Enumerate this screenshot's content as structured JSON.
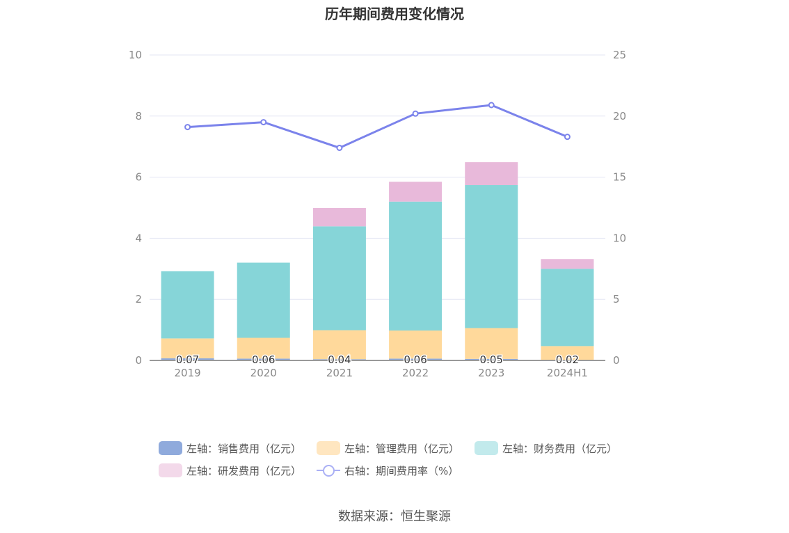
{
  "chart_data": {
    "type": "bar",
    "title": "历年期间费用变化情况",
    "categories": [
      "2019",
      "2020",
      "2021",
      "2022",
      "2023",
      "2024H1"
    ],
    "ylim_left": [
      0,
      10
    ],
    "yticks_left": [
      "0",
      "2",
      "4",
      "6",
      "8",
      "10"
    ],
    "ylim_right": [
      0,
      25
    ],
    "yticks_right": [
      "0",
      "5",
      "10",
      "15",
      "20",
      "25"
    ],
    "grid": true,
    "legend_position": "bottom",
    "series": [
      {
        "name": "左轴：销售费用（亿元）",
        "axis": "left",
        "kind": "bar",
        "stack": "total",
        "color": "#8faadc",
        "values": [
          0.07,
          0.06,
          0.04,
          0.06,
          0.05,
          0.02
        ],
        "labels": [
          "0.07",
          "0.06",
          "0.04",
          "0.06",
          "0.05",
          "0.02"
        ]
      },
      {
        "name": "左轴：管理费用（亿元）",
        "axis": "left",
        "kind": "bar",
        "stack": "total",
        "color": "#ffd99b",
        "values": [
          0.65,
          0.68,
          0.95,
          0.92,
          1.01,
          0.45
        ]
      },
      {
        "name": "左轴：财务费用（亿元）",
        "axis": "left",
        "kind": "bar",
        "stack": "total",
        "color": "#86d5d8",
        "values": [
          2.2,
          2.46,
          3.4,
          4.22,
          4.68,
          2.53
        ]
      },
      {
        "name": "左轴：研发费用（亿元）",
        "axis": "left",
        "kind": "bar",
        "stack": "total",
        "color": "#e8b9da",
        "values": [
          0,
          0,
          0.6,
          0.65,
          0.75,
          0.32
        ]
      },
      {
        "name": "右轴：期间费用率（%）",
        "axis": "right",
        "kind": "line",
        "color": "#7b83eb",
        "values": [
          19.1,
          19.5,
          17.4,
          20.2,
          20.9,
          18.3
        ]
      }
    ]
  },
  "legend": {
    "rows": [
      [
        {
          "label": "左轴：销售费用（亿元）",
          "color": "#8faadc",
          "type": "bar"
        },
        {
          "label": "左轴：管理费用（亿元）",
          "color": "#ffe6c0",
          "type": "bar"
        },
        {
          "label": "左轴：财务费用（亿元）",
          "color": "#c2eaec",
          "type": "bar"
        }
      ],
      [
        {
          "label": "左轴：研发费用（亿元）",
          "color": "#f3d9ea",
          "type": "bar"
        },
        {
          "label": "右轴：期间费用率（%）",
          "color": "#aab0f5",
          "type": "line"
        }
      ]
    ]
  },
  "source": "数据来源：恒生聚源"
}
